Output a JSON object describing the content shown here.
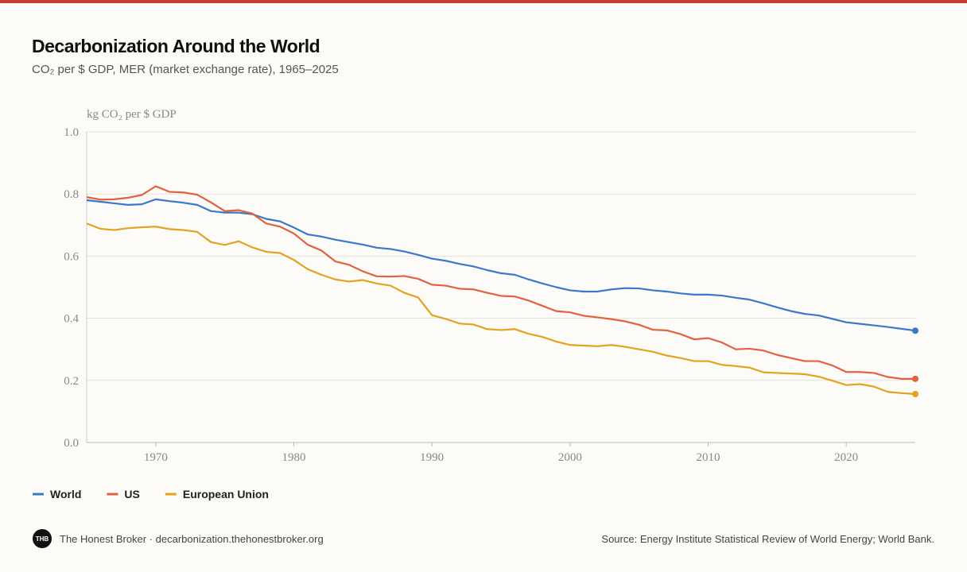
{
  "chart_data": {
    "type": "line",
    "title": "Decarbonization Around the World",
    "subtitle": "CO₂ per $ GDP, MER (market exchange rate), 1965–2025",
    "y_label": "kg CO₂ per $ GDP",
    "x": [
      1965,
      1966,
      1967,
      1968,
      1969,
      1970,
      1971,
      1972,
      1973,
      1974,
      1975,
      1976,
      1977,
      1978,
      1979,
      1980,
      1981,
      1982,
      1983,
      1984,
      1985,
      1986,
      1987,
      1988,
      1989,
      1990,
      1991,
      1992,
      1993,
      1994,
      1995,
      1996,
      1997,
      1998,
      1999,
      2000,
      2001,
      2002,
      2003,
      2004,
      2005,
      2006,
      2007,
      2008,
      2009,
      2010,
      2011,
      2012,
      2013,
      2014,
      2015,
      2016,
      2017,
      2018,
      2019,
      2020,
      2021,
      2022,
      2023,
      2024,
      2025
    ],
    "xlim": [
      1965,
      2025
    ],
    "xticks": [
      1970,
      1980,
      1990,
      2000,
      2010,
      2020
    ],
    "ylim": [
      0,
      1
    ],
    "yticks": [
      {
        "value": 0,
        "label": "0.0"
      },
      0.2,
      0.4,
      0.6,
      0.8,
      {
        "value": 1,
        "label": "1.0"
      }
    ],
    "grid": true,
    "legend": "bottom-left",
    "series": [
      {
        "name": "World",
        "color": "#3a78c9",
        "values": [
          0.78,
          0.775,
          0.77,
          0.765,
          0.767,
          0.783,
          0.777,
          0.772,
          0.765,
          0.745,
          0.74,
          0.74,
          0.735,
          0.72,
          0.712,
          0.692,
          0.67,
          0.663,
          0.653,
          0.645,
          0.637,
          0.627,
          0.623,
          0.615,
          0.604,
          0.592,
          0.585,
          0.575,
          0.567,
          0.555,
          0.545,
          0.54,
          0.525,
          0.512,
          0.5,
          0.49,
          0.486,
          0.486,
          0.493,
          0.497,
          0.496,
          0.49,
          0.486,
          0.48,
          0.476,
          0.476,
          0.473,
          0.466,
          0.46,
          0.448,
          0.435,
          0.423,
          0.414,
          0.409,
          0.398,
          0.387,
          0.382,
          0.377,
          0.372,
          0.366,
          0.36
        ]
      },
      {
        "name": "US",
        "color": "#e0623f",
        "values": [
          0.79,
          0.782,
          0.783,
          0.788,
          0.797,
          0.825,
          0.807,
          0.805,
          0.798,
          0.773,
          0.745,
          0.748,
          0.737,
          0.705,
          0.695,
          0.673,
          0.637,
          0.618,
          0.583,
          0.572,
          0.551,
          0.535,
          0.534,
          0.536,
          0.527,
          0.508,
          0.505,
          0.495,
          0.493,
          0.482,
          0.472,
          0.47,
          0.457,
          0.44,
          0.423,
          0.419,
          0.408,
          0.403,
          0.397,
          0.39,
          0.379,
          0.363,
          0.361,
          0.349,
          0.332,
          0.336,
          0.322,
          0.3,
          0.302,
          0.296,
          0.282,
          0.272,
          0.262,
          0.262,
          0.248,
          0.227,
          0.227,
          0.224,
          0.211,
          0.205,
          0.205
        ]
      },
      {
        "name": "European Union",
        "color": "#e3a21f",
        "values": [
          0.705,
          0.688,
          0.684,
          0.69,
          0.693,
          0.695,
          0.687,
          0.684,
          0.678,
          0.645,
          0.636,
          0.648,
          0.628,
          0.614,
          0.61,
          0.588,
          0.558,
          0.54,
          0.525,
          0.518,
          0.523,
          0.512,
          0.505,
          0.482,
          0.467,
          0.41,
          0.398,
          0.383,
          0.38,
          0.365,
          0.362,
          0.365,
          0.35,
          0.34,
          0.325,
          0.314,
          0.312,
          0.31,
          0.314,
          0.308,
          0.3,
          0.292,
          0.28,
          0.272,
          0.262,
          0.262,
          0.25,
          0.246,
          0.241,
          0.226,
          0.224,
          0.222,
          0.22,
          0.212,
          0.199,
          0.185,
          0.188,
          0.18,
          0.163,
          0.159,
          0.156
        ]
      }
    ]
  },
  "footer": {
    "logo": "THB",
    "credit": "The Honest Broker · decarbonization.thehonestbroker.org",
    "source": "Source: Energy Institute Statistical Review of World Energy; World Bank."
  }
}
